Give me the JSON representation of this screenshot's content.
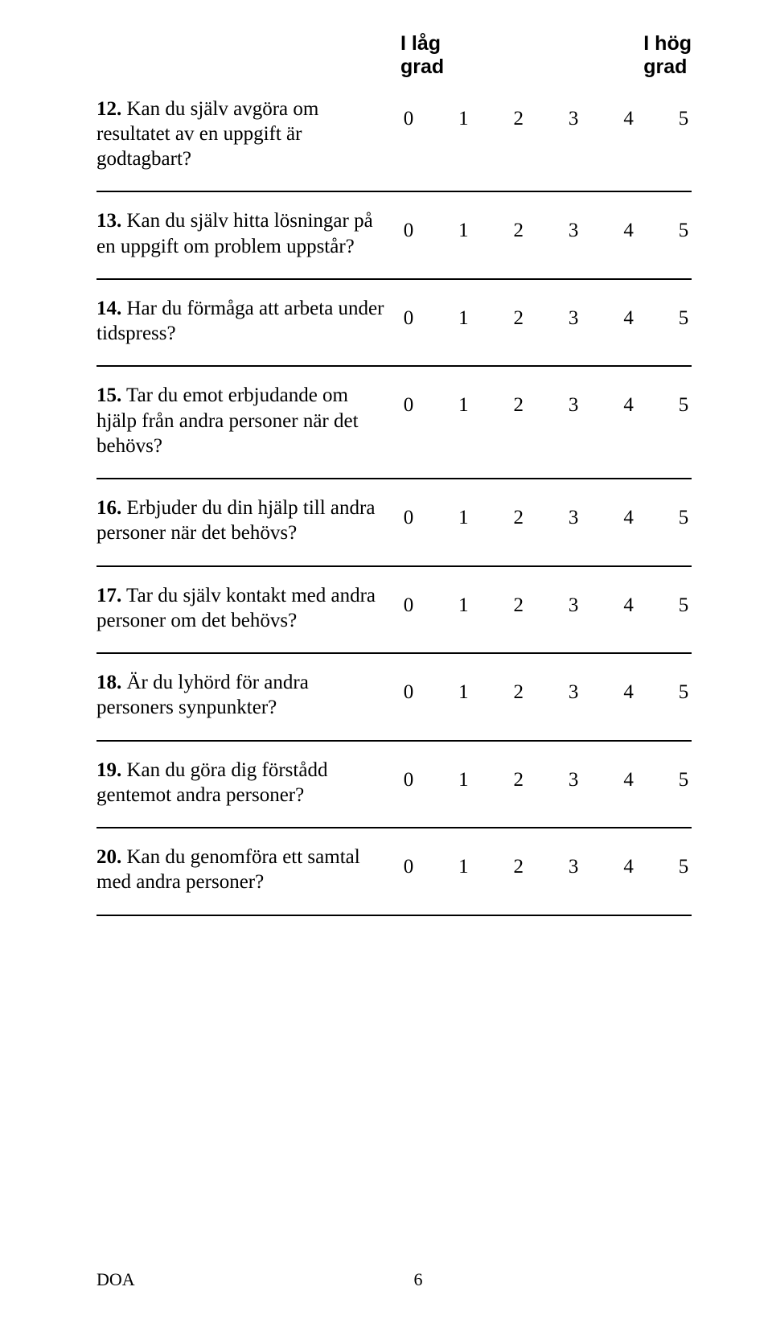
{
  "header": {
    "low_label": "I låg\ngrad",
    "high_label": "I hög\ngrad"
  },
  "scale_values": [
    "0",
    "1",
    "2",
    "3",
    "4",
    "5"
  ],
  "questions": [
    {
      "num": "12.",
      "text": "Kan du själv avgöra om resultatet av en uppgift är godtagbart?"
    },
    {
      "num": "13.",
      "text": "Kan du själv hitta lösningar på en uppgift om problem uppstår?"
    },
    {
      "num": "14.",
      "text": "Har du förmåga att arbeta under tidspress?"
    },
    {
      "num": "15.",
      "text": "Tar du emot erbjudande om hjälp från andra personer när det behövs?"
    },
    {
      "num": "16.",
      "text": "Erbjuder du din hjälp till andra personer när det behövs?"
    },
    {
      "num": "17.",
      "text": "Tar du själv kontakt med andra personer om det behövs?"
    },
    {
      "num": "18.",
      "text": "Är du lyhörd för andra personers synpunkter?"
    },
    {
      "num": "19.",
      "text": "Kan du göra dig förstådd gentemot andra personer?"
    },
    {
      "num": "20.",
      "text": "Kan du genomföra ett samtal med andra personer?"
    }
  ],
  "footer": {
    "doc_id": "DOA",
    "page_number": "6"
  }
}
